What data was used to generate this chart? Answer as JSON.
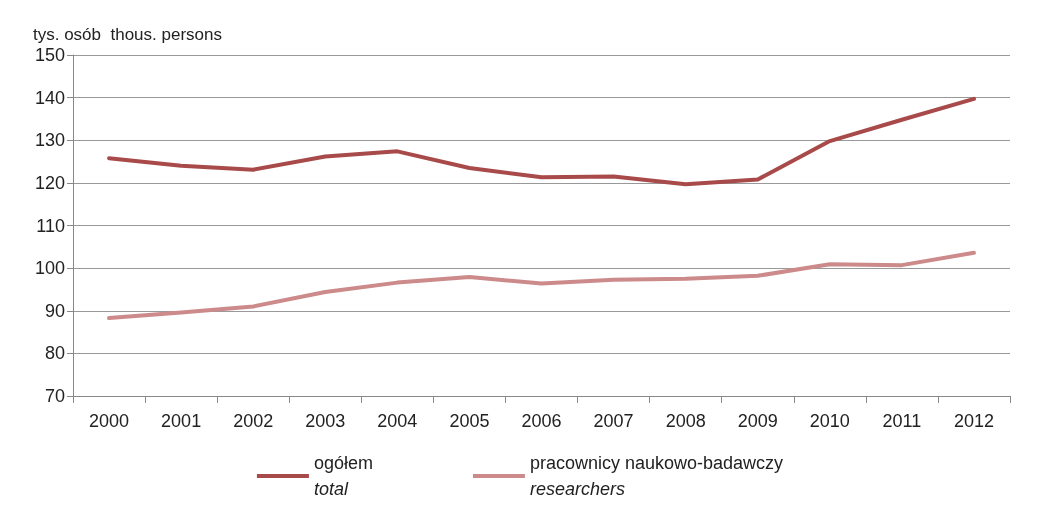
{
  "chart_data": {
    "type": "line",
    "ylabel": "tys. osób  thous. persons",
    "categories": [
      "2000",
      "2001",
      "2002",
      "2003",
      "2004",
      "2005",
      "2006",
      "2007",
      "2008",
      "2009",
      "2010",
      "2011",
      "2012"
    ],
    "series": [
      {
        "name": "ogółem\ntotal",
        "color": "#a84a4a",
        "values": [
          125.8,
          124.0,
          123.1,
          126.2,
          127.4,
          123.5,
          121.3,
          121.5,
          119.7,
          120.8,
          129.8,
          134.8,
          139.7
        ]
      },
      {
        "name": "pracownicy naukowo-badawczy\nresearchers",
        "color": "#cc8a8a",
        "values": [
          88.3,
          89.6,
          91.0,
          94.4,
          96.6,
          97.9,
          96.4,
          97.3,
          97.5,
          98.2,
          100.9,
          100.7,
          103.6
        ]
      }
    ],
    "ylim": [
      70,
      150
    ],
    "yticks": [
      70,
      80,
      90,
      100,
      110,
      120,
      130,
      140,
      150
    ],
    "grid": "y",
    "legend": "bottom",
    "marker": "none",
    "line_style": "solid"
  }
}
